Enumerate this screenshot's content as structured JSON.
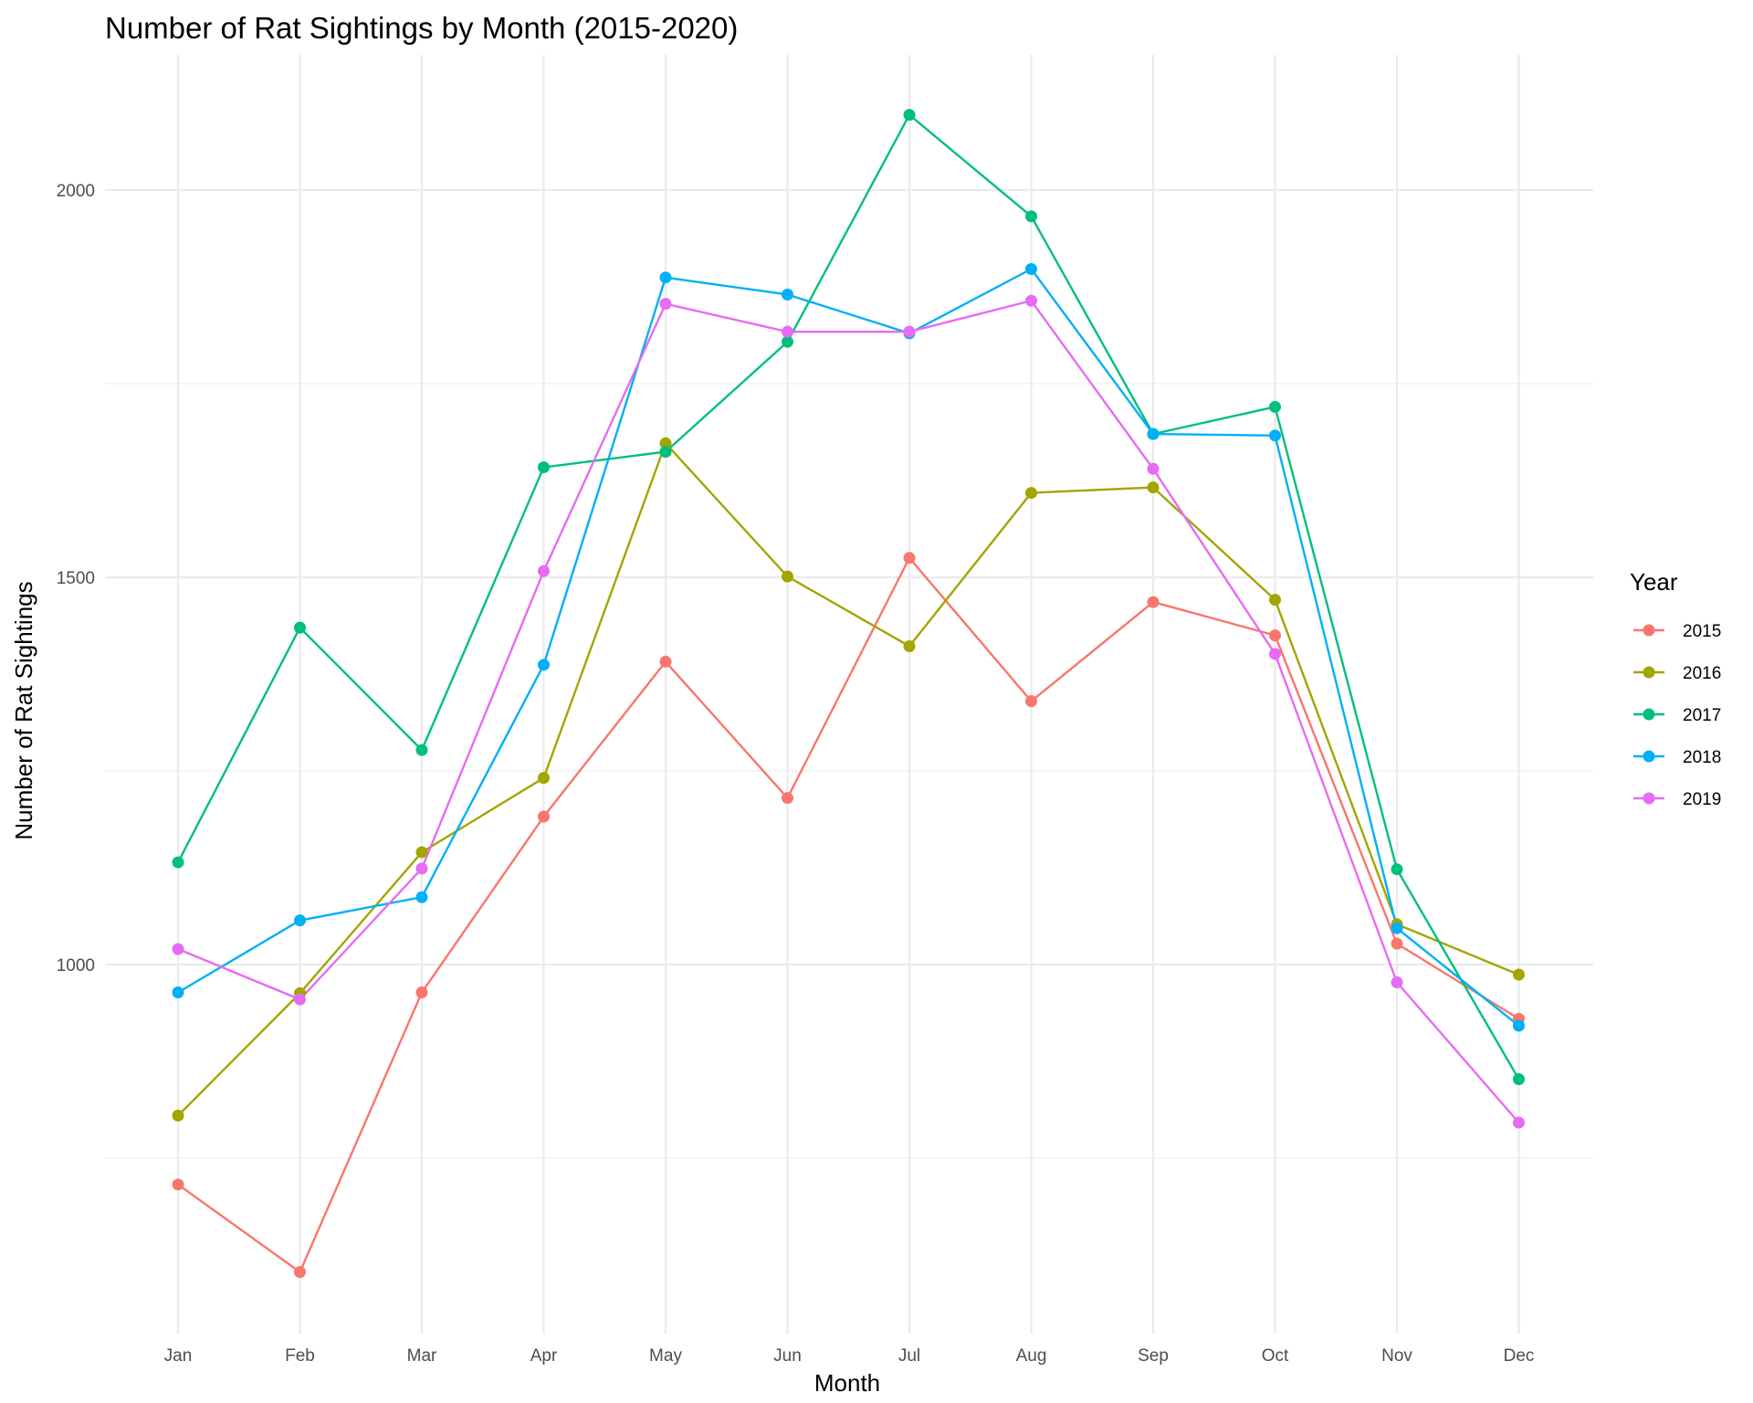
{
  "chart_data": {
    "type": "line",
    "title": "Number of Rat Sightings by Month (2015-2020)",
    "xlabel": "Month",
    "ylabel": "Number of Rat Sightings",
    "categories": [
      "Jan",
      "Feb",
      "Mar",
      "Apr",
      "May",
      "Jun",
      "Jul",
      "Aug",
      "Sep",
      "Oct",
      "Nov",
      "Dec"
    ],
    "ylim": [
      535,
      2220
    ],
    "yticks": [
      1000,
      1500,
      2000
    ],
    "yminor": [
      750,
      1250,
      1750
    ],
    "grid": true,
    "legend": {
      "title": "Year",
      "position": "right"
    },
    "series": [
      {
        "name": "2015",
        "color": "#F8766D",
        "values": [
          716,
          603,
          964,
          1191,
          1391,
          1215,
          1525,
          1340,
          1468,
          1425,
          1027,
          930
        ]
      },
      {
        "name": "2016",
        "color": "#A3A500",
        "values": [
          805,
          963,
          1145,
          1241,
          1673,
          1501,
          1411,
          1609,
          1616,
          1471,
          1052,
          987
        ]
      },
      {
        "name": "2017",
        "color": "#00BF7D",
        "values": [
          1132,
          1435,
          1277,
          1642,
          1662,
          1804,
          2097,
          1966,
          1685,
          1720,
          1123,
          852
        ]
      },
      {
        "name": "2018",
        "color": "#00B0F6",
        "values": [
          964,
          1057,
          1087,
          1387,
          1887,
          1865,
          1815,
          1898,
          1685,
          1683,
          1047,
          921
        ]
      },
      {
        "name": "2019",
        "color": "#E76BF3",
        "values": [
          1020,
          955,
          1124,
          1508,
          1853,
          1817,
          1817,
          1857,
          1640,
          1401,
          977,
          796
        ]
      }
    ]
  }
}
